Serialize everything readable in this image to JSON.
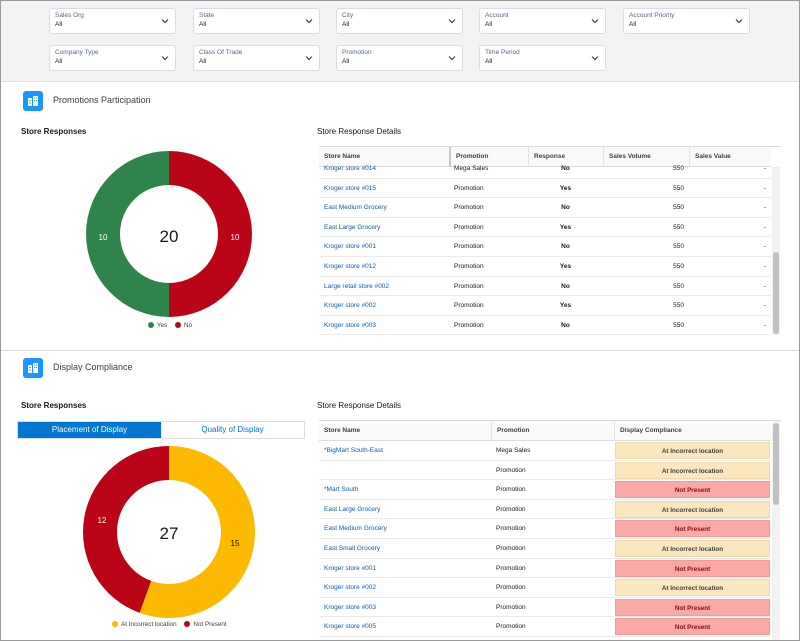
{
  "filters": [
    {
      "label": "Sales Org",
      "value": "All"
    },
    {
      "label": "State",
      "value": "All"
    },
    {
      "label": "City",
      "value": "All"
    },
    {
      "label": "Account",
      "value": "All"
    },
    {
      "label": "Account Priority",
      "value": "All"
    },
    {
      "label": "Company Type",
      "value": "All"
    },
    {
      "label": "Class Of Trade",
      "value": "All"
    },
    {
      "label": "Promotion",
      "value": "All"
    },
    {
      "label": "Time Period",
      "value": "All"
    }
  ],
  "promotions": {
    "section_title": "Promotions Participation",
    "left_title": "Store Responses",
    "right_title": "Store Response Details",
    "donut_total": "20",
    "donut_labels": {
      "yes": "10",
      "no": "10"
    },
    "legend": [
      "Yes",
      "No"
    ],
    "columns": [
      "Store Name",
      "Promotion",
      "Response",
      "Sales Volume",
      "Sales Value"
    ],
    "rows": [
      {
        "store": "Kroger store #014",
        "promotion": "Mega Sales",
        "response": "No",
        "volume": "550",
        "value": "-"
      },
      {
        "store": "Kroger store #015",
        "promotion": "Promotion",
        "response": "Yes",
        "volume": "550",
        "value": "-"
      },
      {
        "store": "East Medium Grocery",
        "promotion": "Promotion",
        "response": "No",
        "volume": "550",
        "value": "-"
      },
      {
        "store": "East Large Grocery",
        "promotion": "Promotion",
        "response": "Yes",
        "volume": "550",
        "value": "-"
      },
      {
        "store": "Kroger store #001",
        "promotion": "Promotion",
        "response": "No",
        "volume": "550",
        "value": "-"
      },
      {
        "store": "Kroger store #012",
        "promotion": "Promotion",
        "response": "Yes",
        "volume": "550",
        "value": "-"
      },
      {
        "store": "Large retail store #002",
        "promotion": "Promotion",
        "response": "No",
        "volume": "550",
        "value": "-"
      },
      {
        "store": "Kroger store #002",
        "promotion": "Promotion",
        "response": "Yes",
        "volume": "550",
        "value": "-"
      },
      {
        "store": "Kroger store #003",
        "promotion": "Promotion",
        "response": "No",
        "volume": "550",
        "value": "-"
      }
    ]
  },
  "display": {
    "section_title": "Display Compliance",
    "left_title": "Store Responses",
    "right_title": "Store Response Details",
    "tabs": [
      "Placement of Display",
      "Quality of Display"
    ],
    "donut_total": "27",
    "donut_labels": {
      "incorrect": "15",
      "not_present": "12"
    },
    "legend": [
      "At Incorrect location",
      "Not Present"
    ],
    "columns": [
      "Store Name",
      "Promotion",
      "Display Compliance"
    ],
    "rows": [
      {
        "store": "*BigMart South-East",
        "promotion": "Mega Sales",
        "compliance": "At Incorrect location"
      },
      {
        "store": "",
        "promotion": "Promotion",
        "compliance": "At Incorrect location"
      },
      {
        "store": "*Mart South",
        "promotion": "Promotion",
        "compliance": "Not Present"
      },
      {
        "store": "East Large Grocery",
        "promotion": "Promotion",
        "compliance": "At Incorrect location"
      },
      {
        "store": "East Medium Grocery",
        "promotion": "Promotion",
        "compliance": "Not Present"
      },
      {
        "store": "East Small Grocery",
        "promotion": "Promotion",
        "compliance": "At Incorrect location"
      },
      {
        "store": "Kroger store #001",
        "promotion": "Promotion",
        "compliance": "Not Present"
      },
      {
        "store": "Kroger store #002",
        "promotion": "Promotion",
        "compliance": "At Incorrect location"
      },
      {
        "store": "Kroger store #003",
        "promotion": "Promotion",
        "compliance": "Not Present"
      },
      {
        "store": "Kroger store #005",
        "promotion": "Promotion",
        "compliance": "Not Present"
      }
    ]
  },
  "chart_data": [
    {
      "type": "pie",
      "categories": [
        "Yes",
        "No"
      ],
      "values": [
        10,
        10
      ],
      "title": "Store Responses",
      "legend": "bottom",
      "colors": [
        "#2e844a",
        "#ba0517"
      ]
    },
    {
      "type": "pie",
      "categories": [
        "At Incorrect location",
        "Not Present"
      ],
      "values": [
        15,
        12
      ],
      "title": "Store Responses",
      "legend": "bottom",
      "colors": [
        "#fcb900",
        "#ba0517"
      ]
    }
  ],
  "colors": {
    "accent": "#0176d3",
    "yes": "#2e844a",
    "no": "#ba0517",
    "incorrect": "#fcb900"
  }
}
